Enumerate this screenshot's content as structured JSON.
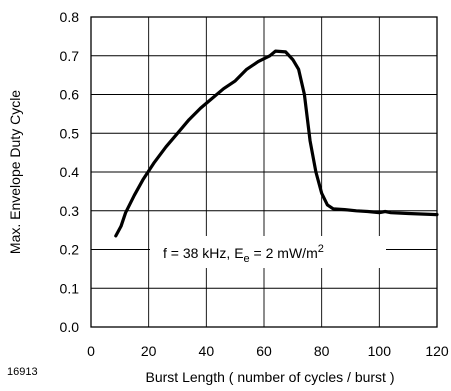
{
  "figure_id": "16913",
  "chart_data": {
    "type": "line",
    "xlabel": "Burst Length ( number of cycles / burst )",
    "ylabel": "Max. Envelope Duty Cycle",
    "xlim": [
      0,
      120
    ],
    "ylim": [
      0.0,
      0.8
    ],
    "x_ticks": [
      0,
      20,
      40,
      60,
      80,
      100,
      120
    ],
    "y_ticks": [
      0.0,
      0.1,
      0.2,
      0.3,
      0.4,
      0.5,
      0.6,
      0.7,
      0.8
    ],
    "y_tick_labels": [
      "0.0",
      "0.1",
      "0.2",
      "0.3",
      "0.4",
      "0.5",
      "0.6",
      "0.7",
      "0.8"
    ],
    "grid": true,
    "annotation": {
      "prefix": "f = 38 kHz, E",
      "subscript": "e",
      "middle": " = 2 mW/m",
      "superscript": "2"
    },
    "series": [
      {
        "values": [
          [
            8.6,
            0.235
          ],
          [
            10.4,
            0.26
          ],
          [
            12,
            0.295
          ],
          [
            15,
            0.34
          ],
          [
            18,
            0.38
          ],
          [
            22,
            0.425
          ],
          [
            26,
            0.465
          ],
          [
            30,
            0.5
          ],
          [
            34,
            0.535
          ],
          [
            38,
            0.565
          ],
          [
            42,
            0.59
          ],
          [
            46,
            0.615
          ],
          [
            50,
            0.635
          ],
          [
            54,
            0.665
          ],
          [
            58,
            0.685
          ],
          [
            62,
            0.7
          ],
          [
            64,
            0.712
          ],
          [
            67.5,
            0.71
          ],
          [
            70,
            0.69
          ],
          [
            72,
            0.665
          ],
          [
            74,
            0.6
          ],
          [
            76,
            0.48
          ],
          [
            78,
            0.4
          ],
          [
            80,
            0.345
          ],
          [
            82,
            0.315
          ],
          [
            84,
            0.305
          ],
          [
            88,
            0.303
          ],
          [
            92,
            0.3
          ],
          [
            96,
            0.298
          ],
          [
            100,
            0.295
          ],
          [
            102,
            0.298
          ],
          [
            104,
            0.295
          ],
          [
            110,
            0.293
          ],
          [
            120,
            0.29
          ]
        ]
      }
    ]
  }
}
